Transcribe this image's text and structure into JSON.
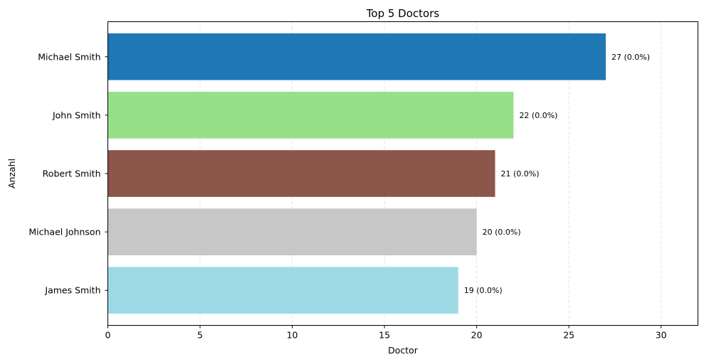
{
  "chart_data": {
    "type": "bar",
    "orientation": "horizontal",
    "title": "Top 5 Doctors",
    "xlabel": "Doctor",
    "ylabel": "Anzahl",
    "xlim": [
      0,
      32
    ],
    "xticks": [
      0,
      5,
      10,
      15,
      20,
      25,
      30
    ],
    "grid": "x-dashed",
    "categories": [
      "Michael Smith",
      "John Smith",
      "Robert Smith",
      "Michael Johnson",
      "James Smith"
    ],
    "values": [
      27,
      22,
      21,
      20,
      19
    ],
    "data_labels": [
      "27 (0.0%)",
      "22 (0.0%)",
      "21 (0.0%)",
      "20 (0.0%)",
      "19 (0.0%)"
    ],
    "colors": [
      "#1f77b4",
      "#98df8a",
      "#8c564b",
      "#c7c7c7",
      "#9edae5"
    ]
  }
}
